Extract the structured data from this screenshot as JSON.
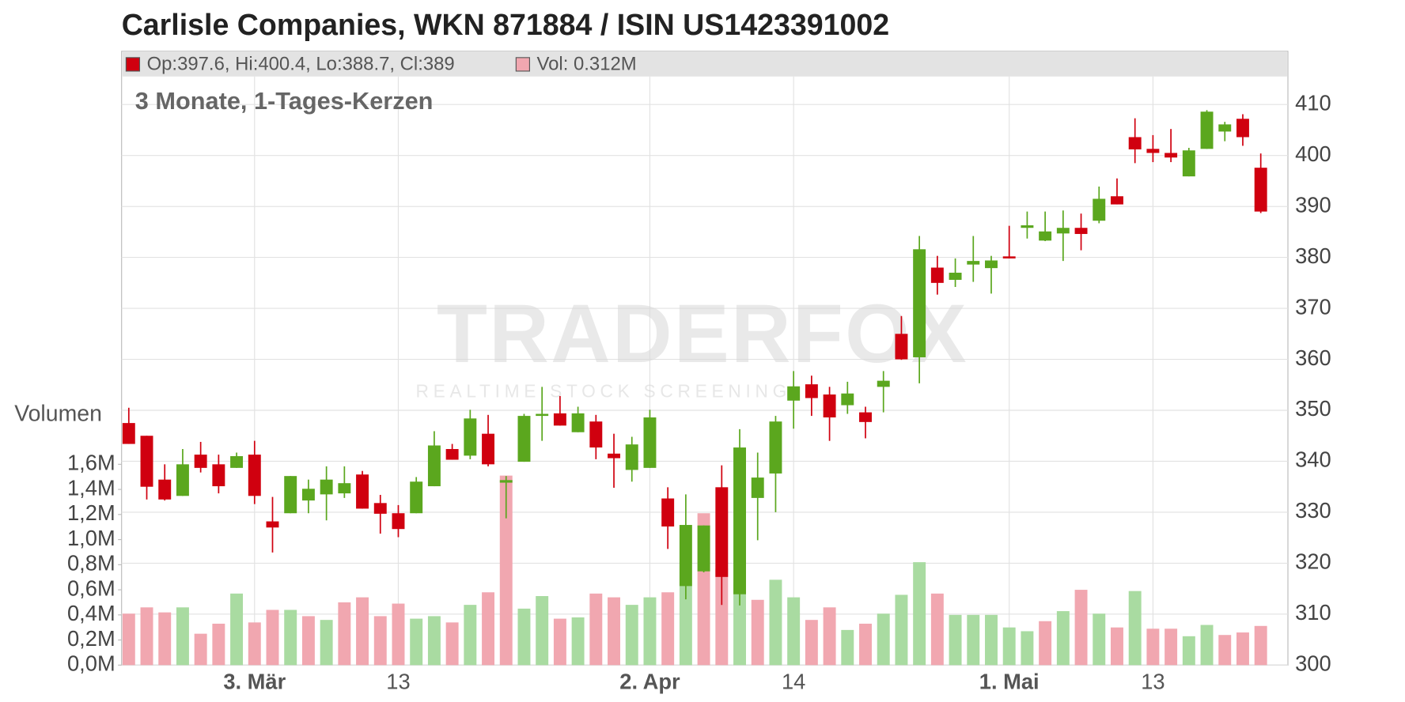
{
  "chart_data": {
    "type": "candlestick",
    "title": "Carlisle Companies, WKN 871884 / ISIN US1423391002",
    "subtitle": "3 Monate, 1-Tages-Kerzen",
    "legend": [
      "Op:397.6, Hi:400.4, Lo:388.7, Cl:389",
      "Vol: 0.312M"
    ],
    "volume_axis_label": "Volumen",
    "watermark": "TRADERFOX",
    "watermark_tagline": "REALTIME STOCK SCREENING",
    "categories": [
      null,
      null,
      null,
      null,
      null,
      null,
      null,
      "3. Mär",
      null,
      null,
      null,
      null,
      null,
      null,
      null,
      "13",
      null,
      null,
      null,
      null,
      null,
      null,
      null,
      null,
      null,
      null,
      null,
      null,
      null,
      "2. Apr",
      null,
      null,
      null,
      null,
      null,
      null,
      null,
      "14",
      null,
      null,
      null,
      null,
      null,
      null,
      null,
      null,
      null,
      null,
      null,
      "1. Mai",
      null,
      null,
      null,
      null,
      null,
      null,
      null,
      "13",
      null,
      null,
      null,
      null,
      null,
      null
    ],
    "open": [
      347.5,
      345.0,
      336.4,
      333.2,
      341.3,
      339.4,
      338.7,
      341.3,
      328.2,
      329.8,
      332.3,
      333.5,
      333.7,
      337.4,
      331.8,
      329.8,
      329.8,
      335.1,
      342.4,
      341.1,
      345.4,
      335.8,
      339.9,
      348.9,
      349.4,
      345.7,
      347.8,
      341.5,
      338.3,
      338.7,
      332.7,
      315.5,
      318.4,
      334.9,
      313.9,
      332.8,
      337.6,
      351.9,
      355.1,
      353.1,
      351.0,
      349.6,
      354.6,
      365.0,
      360.4,
      378.0,
      375.6,
      378.6,
      377.9,
      380.2,
      385.8,
      383.3,
      384.7,
      385.8,
      387.2,
      392.0,
      403.6,
      401.3,
      400.5,
      395.9,
      401.3,
      404.7,
      407.2,
      397.6
    ],
    "high": [
      350.5,
      345.0,
      339.4,
      342.4,
      343.8,
      341.3,
      341.7,
      344.0,
      333.0,
      337.1,
      336.4,
      339.0,
      339.0,
      338.1,
      333.4,
      331.4,
      336.9,
      345.9,
      343.4,
      350.1,
      349.1,
      337.1,
      349.3,
      354.6,
      352.8,
      350.7,
      349.1,
      345.4,
      344.8,
      350.1,
      334.9,
      333.5,
      327.4,
      339.2,
      346.3,
      341.7,
      348.9,
      357.7,
      356.8,
      354.6,
      355.6,
      350.7,
      357.7,
      368.5,
      384.2,
      380.3,
      379.8,
      384.2,
      380.3,
      386.2,
      389.0,
      389.0,
      389.2,
      388.6,
      393.9,
      395.5,
      407.3,
      404.0,
      405.2,
      401.5,
      408.9,
      406.6,
      408.1,
      400.4
    ],
    "low": [
      343.4,
      332.5,
      332.3,
      333.2,
      337.8,
      333.7,
      338.7,
      331.6,
      322.1,
      329.8,
      329.8,
      328.4,
      332.8,
      330.7,
      325.8,
      325.1,
      329.8,
      335.1,
      340.3,
      340.4,
      339.0,
      328.8,
      339.9,
      344.0,
      347.0,
      345.7,
      340.4,
      334.8,
      336.0,
      338.7,
      322.8,
      312.9,
      318.2,
      311.8,
      311.7,
      324.5,
      330.0,
      346.4,
      348.9,
      344.0,
      349.3,
      344.5,
      349.6,
      359.9,
      355.3,
      372.7,
      374.2,
      375.2,
      372.9,
      379.8,
      383.7,
      383.2,
      379.3,
      381.4,
      386.7,
      390.4,
      398.5,
      398.7,
      398.7,
      395.9,
      401.3,
      402.8,
      401.9,
      388.7
    ],
    "close": [
      343.4,
      335.0,
      332.5,
      339.4,
      338.7,
      335.1,
      341.0,
      333.2,
      327.0,
      337.1,
      334.6,
      336.4,
      335.7,
      330.7,
      329.7,
      326.7,
      336.0,
      343.1,
      340.3,
      348.4,
      339.4,
      336.3,
      348.9,
      349.3,
      347.0,
      349.4,
      342.7,
      340.6,
      343.3,
      348.6,
      327.2,
      327.5,
      327.4,
      317.3,
      342.7,
      336.8,
      347.8,
      354.7,
      352.4,
      348.6,
      353.3,
      347.7,
      355.8,
      360.0,
      381.6,
      375.0,
      377.0,
      379.3,
      379.4,
      379.8,
      386.3,
      385.1,
      385.8,
      384.6,
      391.5,
      390.4,
      401.2,
      400.5,
      399.6,
      401.0,
      408.6,
      406.1,
      403.6,
      389
    ],
    "volume": [
      0.41,
      0.46,
      0.42,
      0.46,
      0.25,
      0.33,
      0.57,
      0.34,
      0.44,
      0.44,
      0.39,
      0.36,
      0.5,
      0.54,
      0.39,
      0.49,
      0.37,
      0.39,
      0.34,
      0.48,
      0.58,
      1.51,
      0.45,
      0.55,
      0.37,
      0.38,
      0.57,
      0.54,
      0.48,
      0.54,
      0.58,
      0.63,
      1.21,
      0.77,
      0.66,
      0.52,
      0.68,
      0.54,
      0.36,
      0.46,
      0.28,
      0.33,
      0.41,
      0.56,
      0.82,
      0.57,
      0.4,
      0.4,
      0.4,
      0.3,
      0.27,
      0.35,
      0.43,
      0.6,
      0.41,
      0.3,
      0.59,
      0.29,
      0.29,
      0.23,
      0.32,
      0.24,
      0.26,
      0.312
    ],
    "ylim": [
      300,
      415.5
    ],
    "yticks": [
      300,
      310,
      320,
      330,
      340,
      350,
      360,
      370,
      380,
      390,
      400,
      410
    ],
    "y2lim": [
      0,
      4.69
    ],
    "y2ticks": [
      {
        "value": 0,
        "label": "0,0M"
      },
      {
        "value": 0.2,
        "label": "0,2M"
      },
      {
        "value": 0.4,
        "label": "0,4M"
      },
      {
        "value": 0.6,
        "label": "0,6M"
      },
      {
        "value": 0.8,
        "label": "0,8M"
      },
      {
        "value": 1.0,
        "label": "1,0M"
      },
      {
        "value": 1.2,
        "label": "1,2M"
      },
      {
        "value": 1.4,
        "label": "1,4M"
      },
      {
        "value": 1.6,
        "label": "1,6M"
      }
    ],
    "up_color": "#5ba71e",
    "down_color": "#d0000f",
    "volume_up_color": "#a9dba1",
    "volume_down_color": "#f1a7b0",
    "grid": true
  }
}
